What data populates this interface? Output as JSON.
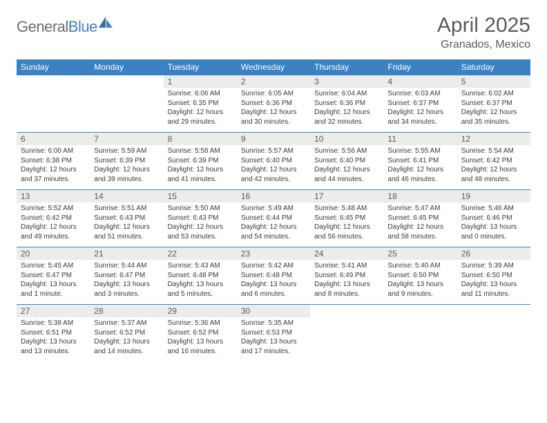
{
  "brand": {
    "part1": "General",
    "part2": "Blue"
  },
  "title": "April 2025",
  "location": "Granados, Mexico",
  "colors": {
    "header_bg": "#3b82c4",
    "header_text": "#ffffff",
    "daynum_bg": "#ececec",
    "text_gray": "#5a5a5a",
    "body_text": "#3a3a3a",
    "divider": "#3b82c4",
    "page_bg": "#ffffff"
  },
  "day_headers": [
    "Sunday",
    "Monday",
    "Tuesday",
    "Wednesday",
    "Thursday",
    "Friday",
    "Saturday"
  ],
  "weeks": [
    [
      null,
      null,
      {
        "n": "1",
        "sunrise": "Sunrise: 6:06 AM",
        "sunset": "Sunset: 6:35 PM",
        "day1": "Daylight: 12 hours",
        "day2": "and 29 minutes."
      },
      {
        "n": "2",
        "sunrise": "Sunrise: 6:05 AM",
        "sunset": "Sunset: 6:36 PM",
        "day1": "Daylight: 12 hours",
        "day2": "and 30 minutes."
      },
      {
        "n": "3",
        "sunrise": "Sunrise: 6:04 AM",
        "sunset": "Sunset: 6:36 PM",
        "day1": "Daylight: 12 hours",
        "day2": "and 32 minutes."
      },
      {
        "n": "4",
        "sunrise": "Sunrise: 6:03 AM",
        "sunset": "Sunset: 6:37 PM",
        "day1": "Daylight: 12 hours",
        "day2": "and 34 minutes."
      },
      {
        "n": "5",
        "sunrise": "Sunrise: 6:02 AM",
        "sunset": "Sunset: 6:37 PM",
        "day1": "Daylight: 12 hours",
        "day2": "and 35 minutes."
      }
    ],
    [
      {
        "n": "6",
        "sunrise": "Sunrise: 6:00 AM",
        "sunset": "Sunset: 6:38 PM",
        "day1": "Daylight: 12 hours",
        "day2": "and 37 minutes."
      },
      {
        "n": "7",
        "sunrise": "Sunrise: 5:59 AM",
        "sunset": "Sunset: 6:39 PM",
        "day1": "Daylight: 12 hours",
        "day2": "and 39 minutes."
      },
      {
        "n": "8",
        "sunrise": "Sunrise: 5:58 AM",
        "sunset": "Sunset: 6:39 PM",
        "day1": "Daylight: 12 hours",
        "day2": "and 41 minutes."
      },
      {
        "n": "9",
        "sunrise": "Sunrise: 5:57 AM",
        "sunset": "Sunset: 6:40 PM",
        "day1": "Daylight: 12 hours",
        "day2": "and 42 minutes."
      },
      {
        "n": "10",
        "sunrise": "Sunrise: 5:56 AM",
        "sunset": "Sunset: 6:40 PM",
        "day1": "Daylight: 12 hours",
        "day2": "and 44 minutes."
      },
      {
        "n": "11",
        "sunrise": "Sunrise: 5:55 AM",
        "sunset": "Sunset: 6:41 PM",
        "day1": "Daylight: 12 hours",
        "day2": "and 46 minutes."
      },
      {
        "n": "12",
        "sunrise": "Sunrise: 5:54 AM",
        "sunset": "Sunset: 6:42 PM",
        "day1": "Daylight: 12 hours",
        "day2": "and 48 minutes."
      }
    ],
    [
      {
        "n": "13",
        "sunrise": "Sunrise: 5:52 AM",
        "sunset": "Sunset: 6:42 PM",
        "day1": "Daylight: 12 hours",
        "day2": "and 49 minutes."
      },
      {
        "n": "14",
        "sunrise": "Sunrise: 5:51 AM",
        "sunset": "Sunset: 6:43 PM",
        "day1": "Daylight: 12 hours",
        "day2": "and 51 minutes."
      },
      {
        "n": "15",
        "sunrise": "Sunrise: 5:50 AM",
        "sunset": "Sunset: 6:43 PM",
        "day1": "Daylight: 12 hours",
        "day2": "and 53 minutes."
      },
      {
        "n": "16",
        "sunrise": "Sunrise: 5:49 AM",
        "sunset": "Sunset: 6:44 PM",
        "day1": "Daylight: 12 hours",
        "day2": "and 54 minutes."
      },
      {
        "n": "17",
        "sunrise": "Sunrise: 5:48 AM",
        "sunset": "Sunset: 6:45 PM",
        "day1": "Daylight: 12 hours",
        "day2": "and 56 minutes."
      },
      {
        "n": "18",
        "sunrise": "Sunrise: 5:47 AM",
        "sunset": "Sunset: 6:45 PM",
        "day1": "Daylight: 12 hours",
        "day2": "and 58 minutes."
      },
      {
        "n": "19",
        "sunrise": "Sunrise: 5:46 AM",
        "sunset": "Sunset: 6:46 PM",
        "day1": "Daylight: 13 hours",
        "day2": "and 0 minutes."
      }
    ],
    [
      {
        "n": "20",
        "sunrise": "Sunrise: 5:45 AM",
        "sunset": "Sunset: 6:47 PM",
        "day1": "Daylight: 13 hours",
        "day2": "and 1 minute."
      },
      {
        "n": "21",
        "sunrise": "Sunrise: 5:44 AM",
        "sunset": "Sunset: 6:47 PM",
        "day1": "Daylight: 13 hours",
        "day2": "and 3 minutes."
      },
      {
        "n": "22",
        "sunrise": "Sunrise: 5:43 AM",
        "sunset": "Sunset: 6:48 PM",
        "day1": "Daylight: 13 hours",
        "day2": "and 5 minutes."
      },
      {
        "n": "23",
        "sunrise": "Sunrise: 5:42 AM",
        "sunset": "Sunset: 6:48 PM",
        "day1": "Daylight: 13 hours",
        "day2": "and 6 minutes."
      },
      {
        "n": "24",
        "sunrise": "Sunrise: 5:41 AM",
        "sunset": "Sunset: 6:49 PM",
        "day1": "Daylight: 13 hours",
        "day2": "and 8 minutes."
      },
      {
        "n": "25",
        "sunrise": "Sunrise: 5:40 AM",
        "sunset": "Sunset: 6:50 PM",
        "day1": "Daylight: 13 hours",
        "day2": "and 9 minutes."
      },
      {
        "n": "26",
        "sunrise": "Sunrise: 5:39 AM",
        "sunset": "Sunset: 6:50 PM",
        "day1": "Daylight: 13 hours",
        "day2": "and 11 minutes."
      }
    ],
    [
      {
        "n": "27",
        "sunrise": "Sunrise: 5:38 AM",
        "sunset": "Sunset: 6:51 PM",
        "day1": "Daylight: 13 hours",
        "day2": "and 13 minutes."
      },
      {
        "n": "28",
        "sunrise": "Sunrise: 5:37 AM",
        "sunset": "Sunset: 6:52 PM",
        "day1": "Daylight: 13 hours",
        "day2": "and 14 minutes."
      },
      {
        "n": "29",
        "sunrise": "Sunrise: 5:36 AM",
        "sunset": "Sunset: 6:52 PM",
        "day1": "Daylight: 13 hours",
        "day2": "and 16 minutes."
      },
      {
        "n": "30",
        "sunrise": "Sunrise: 5:35 AM",
        "sunset": "Sunset: 6:53 PM",
        "day1": "Daylight: 13 hours",
        "day2": "and 17 minutes."
      },
      null,
      null,
      null
    ]
  ]
}
